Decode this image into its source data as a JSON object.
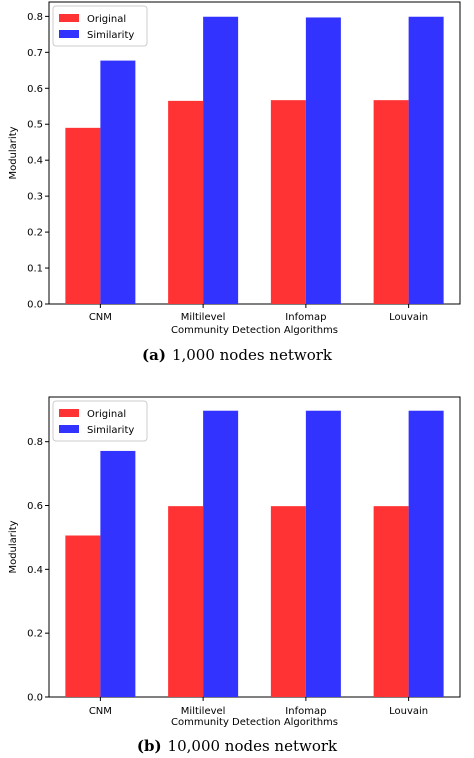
{
  "chart_data": [
    {
      "type": "bar",
      "categories": [
        "CNM",
        "Miltilevel",
        "Infomap",
        "Louvain"
      ],
      "series": [
        {
          "name": "Original",
          "color": "#ff3333",
          "values": [
            0.49,
            0.565,
            0.567,
            0.567
          ]
        },
        {
          "name": "Similarity",
          "color": "#3333ff",
          "values": [
            0.677,
            0.799,
            0.797,
            0.799
          ]
        }
      ],
      "xlabel": "Community Detection Algorithms",
      "ylabel": "Modularity",
      "ylim": [
        0,
        0.84
      ],
      "yticks": [
        "0.0",
        "0.1",
        "0.2",
        "0.3",
        "0.4",
        "0.5",
        "0.6",
        "0.7",
        "0.8"
      ],
      "legend": "top-left",
      "grid": false,
      "caption_label": "(a)",
      "caption": "1,000 nodes network"
    },
    {
      "type": "bar",
      "categories": [
        "CNM",
        "Miltilevel",
        "Infomap",
        "Louvain"
      ],
      "series": [
        {
          "name": "Original",
          "color": "#ff3333",
          "values": [
            0.506,
            0.598,
            0.598,
            0.598
          ]
        },
        {
          "name": "Similarity",
          "color": "#3333ff",
          "values": [
            0.771,
            0.897,
            0.897,
            0.897
          ]
        }
      ],
      "xlabel": "Community Detection Algorithms",
      "ylabel": "Modularity",
      "ylim": [
        0,
        0.94
      ],
      "yticks": [
        "0.0",
        "0.2",
        "0.4",
        "0.6",
        "0.8"
      ],
      "legend": "top-left",
      "grid": false,
      "caption_label": "(b)",
      "caption": "10,000 nodes network"
    }
  ]
}
